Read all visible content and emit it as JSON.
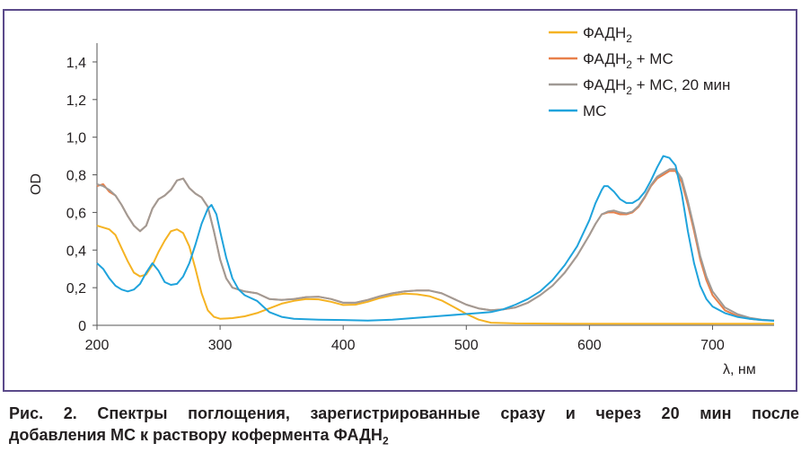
{
  "chart_data": {
    "type": "line",
    "title": "",
    "xlabel": "λ, нм",
    "ylabel": "OD",
    "xlim": [
      200,
      750
    ],
    "ylim": [
      0,
      1.5
    ],
    "xticks": [
      200,
      300,
      400,
      500,
      600,
      700
    ],
    "xtick_labels": [
      "200",
      "300",
      "400",
      "500",
      "600",
      "700"
    ],
    "yticks": [
      0,
      0.2,
      0.4,
      0.6,
      0.8,
      1.0,
      1.2,
      1.4
    ],
    "ytick_labels": [
      "0",
      "0,2",
      "0,4",
      "0,6",
      "0,8",
      "1,0",
      "1,2",
      "1,4"
    ],
    "grid": false,
    "legend_position": "top-right",
    "series": [
      {
        "name": "ФАДН",
        "name_sub": "2",
        "name_suffix": "",
        "color": "#f5b323",
        "points": [
          [
            200,
            0.53
          ],
          [
            210,
            0.51
          ],
          [
            215,
            0.48
          ],
          [
            220,
            0.41
          ],
          [
            225,
            0.34
          ],
          [
            230,
            0.28
          ],
          [
            235,
            0.26
          ],
          [
            240,
            0.27
          ],
          [
            245,
            0.32
          ],
          [
            250,
            0.39
          ],
          [
            255,
            0.45
          ],
          [
            260,
            0.5
          ],
          [
            265,
            0.51
          ],
          [
            270,
            0.49
          ],
          [
            275,
            0.42
          ],
          [
            280,
            0.3
          ],
          [
            285,
            0.17
          ],
          [
            290,
            0.08
          ],
          [
            295,
            0.045
          ],
          [
            300,
            0.035
          ],
          [
            310,
            0.038
          ],
          [
            320,
            0.048
          ],
          [
            330,
            0.065
          ],
          [
            340,
            0.09
          ],
          [
            350,
            0.115
          ],
          [
            360,
            0.13
          ],
          [
            370,
            0.14
          ],
          [
            380,
            0.138
          ],
          [
            390,
            0.125
          ],
          [
            400,
            0.108
          ],
          [
            410,
            0.11
          ],
          [
            420,
            0.125
          ],
          [
            430,
            0.145
          ],
          [
            440,
            0.16
          ],
          [
            450,
            0.168
          ],
          [
            460,
            0.165
          ],
          [
            470,
            0.155
          ],
          [
            480,
            0.132
          ],
          [
            490,
            0.097
          ],
          [
            500,
            0.06
          ],
          [
            510,
            0.03
          ],
          [
            520,
            0.014
          ],
          [
            540,
            0.01
          ],
          [
            600,
            0.008
          ],
          [
            700,
            0.008
          ],
          [
            750,
            0.008
          ]
        ]
      },
      {
        "name": "ФАДН",
        "name_sub": "2",
        "name_suffix": " + МС",
        "color": "#e8804a",
        "points": [
          [
            200,
            0.74
          ],
          [
            205,
            0.75
          ],
          [
            210,
            0.71
          ],
          [
            215,
            0.69
          ],
          [
            220,
            0.64
          ],
          [
            225,
            0.58
          ],
          [
            230,
            0.53
          ],
          [
            235,
            0.5
          ],
          [
            240,
            0.53
          ],
          [
            245,
            0.62
          ],
          [
            250,
            0.67
          ],
          [
            255,
            0.69
          ],
          [
            260,
            0.72
          ],
          [
            265,
            0.77
          ],
          [
            270,
            0.78
          ],
          [
            275,
            0.73
          ],
          [
            280,
            0.7
          ],
          [
            285,
            0.68
          ],
          [
            290,
            0.63
          ],
          [
            295,
            0.5
          ],
          [
            300,
            0.35
          ],
          [
            305,
            0.25
          ],
          [
            310,
            0.2
          ],
          [
            320,
            0.18
          ],
          [
            330,
            0.17
          ],
          [
            340,
            0.14
          ],
          [
            350,
            0.135
          ],
          [
            360,
            0.14
          ],
          [
            370,
            0.15
          ],
          [
            380,
            0.152
          ],
          [
            390,
            0.14
          ],
          [
            400,
            0.12
          ],
          [
            410,
            0.12
          ],
          [
            420,
            0.135
          ],
          [
            430,
            0.155
          ],
          [
            440,
            0.17
          ],
          [
            450,
            0.18
          ],
          [
            460,
            0.185
          ],
          [
            470,
            0.185
          ],
          [
            480,
            0.17
          ],
          [
            490,
            0.14
          ],
          [
            500,
            0.11
          ],
          [
            510,
            0.09
          ],
          [
            520,
            0.08
          ],
          [
            530,
            0.085
          ],
          [
            540,
            0.095
          ],
          [
            550,
            0.12
          ],
          [
            560,
            0.16
          ],
          [
            570,
            0.21
          ],
          [
            580,
            0.28
          ],
          [
            590,
            0.37
          ],
          [
            600,
            0.48
          ],
          [
            605,
            0.54
          ],
          [
            610,
            0.59
          ],
          [
            615,
            0.6
          ],
          [
            620,
            0.6
          ],
          [
            625,
            0.59
          ],
          [
            630,
            0.59
          ],
          [
            635,
            0.6
          ],
          [
            640,
            0.63
          ],
          [
            645,
            0.68
          ],
          [
            650,
            0.74
          ],
          [
            655,
            0.78
          ],
          [
            660,
            0.8
          ],
          [
            665,
            0.82
          ],
          [
            670,
            0.82
          ],
          [
            675,
            0.76
          ],
          [
            680,
            0.64
          ],
          [
            685,
            0.5
          ],
          [
            690,
            0.35
          ],
          [
            695,
            0.24
          ],
          [
            700,
            0.16
          ],
          [
            710,
            0.08
          ],
          [
            720,
            0.05
          ],
          [
            730,
            0.035
          ],
          [
            740,
            0.028
          ],
          [
            750,
            0.025
          ]
        ]
      },
      {
        "name": "ФАДН",
        "name_sub": "2",
        "name_suffix": " + МС, 20 мин",
        "color": "#a09a95",
        "points": [
          [
            200,
            0.75
          ],
          [
            205,
            0.74
          ],
          [
            210,
            0.72
          ],
          [
            215,
            0.69
          ],
          [
            220,
            0.64
          ],
          [
            225,
            0.58
          ],
          [
            230,
            0.53
          ],
          [
            235,
            0.5
          ],
          [
            240,
            0.53
          ],
          [
            245,
            0.62
          ],
          [
            250,
            0.67
          ],
          [
            255,
            0.69
          ],
          [
            260,
            0.72
          ],
          [
            265,
            0.77
          ],
          [
            270,
            0.78
          ],
          [
            275,
            0.73
          ],
          [
            280,
            0.7
          ],
          [
            285,
            0.68
          ],
          [
            290,
            0.63
          ],
          [
            295,
            0.5
          ],
          [
            300,
            0.35
          ],
          [
            305,
            0.25
          ],
          [
            310,
            0.2
          ],
          [
            320,
            0.18
          ],
          [
            330,
            0.17
          ],
          [
            340,
            0.14
          ],
          [
            350,
            0.135
          ],
          [
            360,
            0.14
          ],
          [
            370,
            0.15
          ],
          [
            380,
            0.152
          ],
          [
            390,
            0.14
          ],
          [
            400,
            0.12
          ],
          [
            410,
            0.12
          ],
          [
            420,
            0.135
          ],
          [
            430,
            0.155
          ],
          [
            440,
            0.17
          ],
          [
            450,
            0.18
          ],
          [
            460,
            0.185
          ],
          [
            470,
            0.185
          ],
          [
            480,
            0.17
          ],
          [
            490,
            0.14
          ],
          [
            500,
            0.11
          ],
          [
            510,
            0.09
          ],
          [
            520,
            0.08
          ],
          [
            530,
            0.085
          ],
          [
            540,
            0.095
          ],
          [
            550,
            0.12
          ],
          [
            560,
            0.16
          ],
          [
            570,
            0.21
          ],
          [
            580,
            0.28
          ],
          [
            590,
            0.37
          ],
          [
            600,
            0.48
          ],
          [
            605,
            0.54
          ],
          [
            610,
            0.59
          ],
          [
            615,
            0.605
          ],
          [
            620,
            0.61
          ],
          [
            625,
            0.6
          ],
          [
            630,
            0.595
          ],
          [
            635,
            0.605
          ],
          [
            640,
            0.635
          ],
          [
            645,
            0.685
          ],
          [
            650,
            0.745
          ],
          [
            655,
            0.79
          ],
          [
            660,
            0.81
          ],
          [
            665,
            0.83
          ],
          [
            670,
            0.83
          ],
          [
            675,
            0.78
          ],
          [
            680,
            0.66
          ],
          [
            685,
            0.52
          ],
          [
            690,
            0.37
          ],
          [
            695,
            0.26
          ],
          [
            700,
            0.18
          ],
          [
            710,
            0.095
          ],
          [
            720,
            0.06
          ],
          [
            730,
            0.04
          ],
          [
            740,
            0.03
          ],
          [
            750,
            0.026
          ]
        ]
      },
      {
        "name": "МС",
        "name_sub": "",
        "name_suffix": "",
        "color": "#1fa3dc",
        "points": [
          [
            200,
            0.33
          ],
          [
            205,
            0.3
          ],
          [
            210,
            0.25
          ],
          [
            215,
            0.21
          ],
          [
            220,
            0.19
          ],
          [
            225,
            0.18
          ],
          [
            230,
            0.19
          ],
          [
            235,
            0.22
          ],
          [
            240,
            0.28
          ],
          [
            245,
            0.33
          ],
          [
            250,
            0.29
          ],
          [
            255,
            0.23
          ],
          [
            260,
            0.215
          ],
          [
            265,
            0.22
          ],
          [
            270,
            0.26
          ],
          [
            275,
            0.33
          ],
          [
            280,
            0.43
          ],
          [
            285,
            0.54
          ],
          [
            290,
            0.62
          ],
          [
            293,
            0.64
          ],
          [
            297,
            0.59
          ],
          [
            300,
            0.5
          ],
          [
            305,
            0.36
          ],
          [
            310,
            0.25
          ],
          [
            315,
            0.19
          ],
          [
            320,
            0.16
          ],
          [
            330,
            0.13
          ],
          [
            335,
            0.1
          ],
          [
            340,
            0.07
          ],
          [
            350,
            0.045
          ],
          [
            360,
            0.035
          ],
          [
            380,
            0.03
          ],
          [
            400,
            0.028
          ],
          [
            420,
            0.025
          ],
          [
            440,
            0.03
          ],
          [
            460,
            0.04
          ],
          [
            480,
            0.05
          ],
          [
            500,
            0.06
          ],
          [
            510,
            0.065
          ],
          [
            520,
            0.07
          ],
          [
            530,
            0.085
          ],
          [
            540,
            0.11
          ],
          [
            550,
            0.14
          ],
          [
            560,
            0.18
          ],
          [
            570,
            0.24
          ],
          [
            580,
            0.32
          ],
          [
            590,
            0.42
          ],
          [
            600,
            0.56
          ],
          [
            605,
            0.65
          ],
          [
            610,
            0.72
          ],
          [
            612,
            0.74
          ],
          [
            615,
            0.74
          ],
          [
            620,
            0.71
          ],
          [
            625,
            0.67
          ],
          [
            630,
            0.65
          ],
          [
            635,
            0.65
          ],
          [
            640,
            0.67
          ],
          [
            645,
            0.71
          ],
          [
            650,
            0.77
          ],
          [
            655,
            0.84
          ],
          [
            660,
            0.9
          ],
          [
            665,
            0.89
          ],
          [
            670,
            0.85
          ],
          [
            675,
            0.7
          ],
          [
            680,
            0.5
          ],
          [
            685,
            0.33
          ],
          [
            690,
            0.21
          ],
          [
            695,
            0.14
          ],
          [
            700,
            0.1
          ],
          [
            710,
            0.065
          ],
          [
            720,
            0.045
          ],
          [
            730,
            0.035
          ],
          [
            740,
            0.028
          ],
          [
            750,
            0.024
          ]
        ]
      }
    ]
  },
  "caption": {
    "line1": "Рис. 2. Спектры поглощения, зарегистрированные сразу и через 20 мин после",
    "line2_main": "добавления МС к раствору кофермента ФАДН",
    "line2_sub": "2"
  }
}
